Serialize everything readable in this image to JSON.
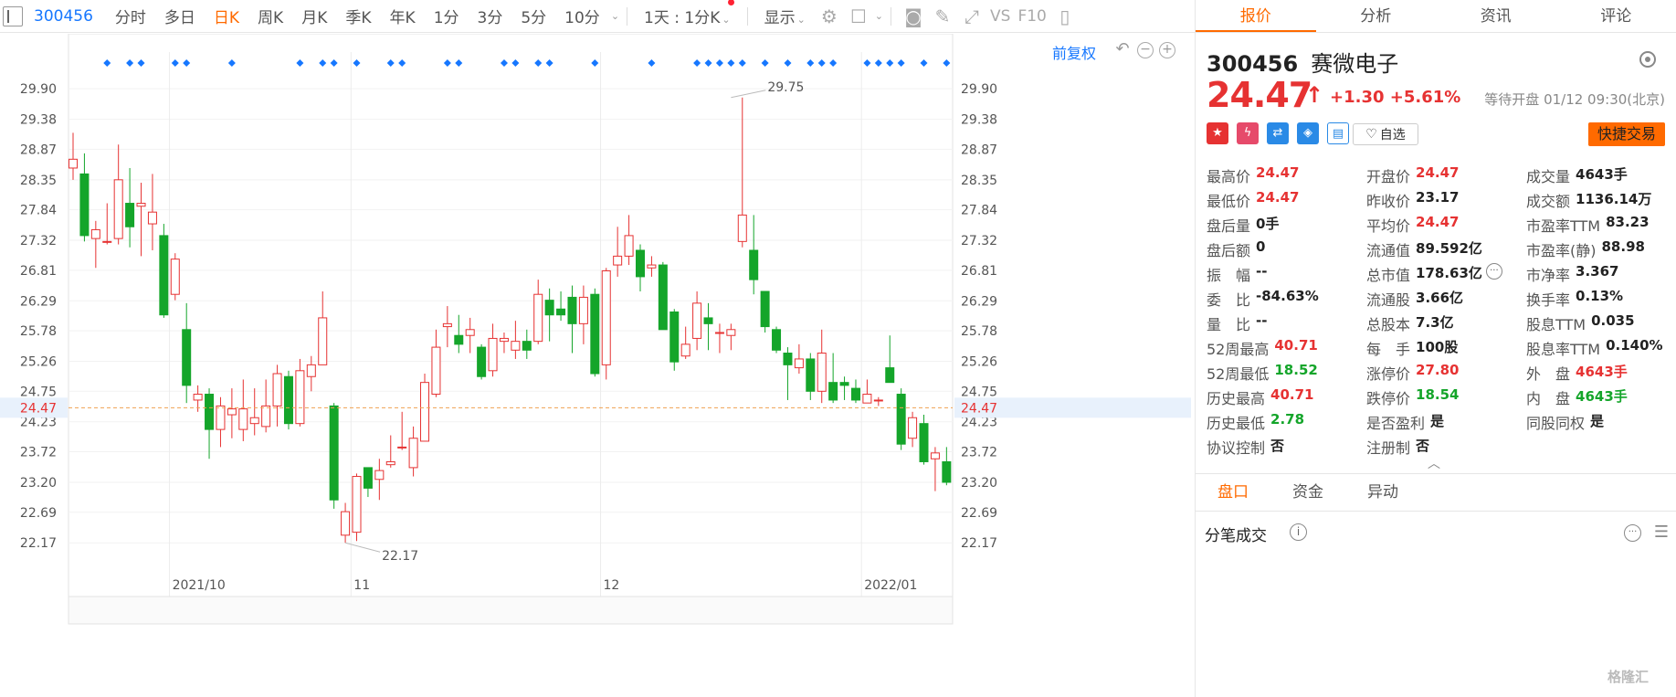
{
  "toolbar": {
    "code": "300456",
    "periods": [
      "分时",
      "多日",
      "日K",
      "周K",
      "月K",
      "季K",
      "年K",
      "1分",
      "3分",
      "5分",
      "10分"
    ],
    "active_period": "日K",
    "period_select": "1天 : 1分K",
    "display_label": "显示",
    "vs_label": "VS",
    "f10_label": "F10"
  },
  "chart_controls": {
    "restore_label": "前复权"
  },
  "panel": {
    "tabs": [
      "报价",
      "分析",
      "资讯",
      "评论"
    ],
    "active_tab": "报价",
    "code": "300456",
    "name": "赛微电子",
    "price": "24.47",
    "change": "+1.30",
    "change_pct": "+5.61%",
    "market_status": "等待开盘 01/12 09:30(北京)",
    "fav_label": "自选",
    "quick_trade_label": "快捷交易",
    "stats": [
      [
        {
          "k": "最高价",
          "v": "24.47",
          "c": "red"
        },
        {
          "k": "开盘价",
          "v": "24.47",
          "c": "red"
        },
        {
          "k": "成交量",
          "v": "4643手",
          "c": ""
        }
      ],
      [
        {
          "k": "最低价",
          "v": "24.47",
          "c": "red"
        },
        {
          "k": "昨收价",
          "v": "23.17",
          "c": ""
        },
        {
          "k": "成交额",
          "v": "1136.14万",
          "c": ""
        }
      ],
      [
        {
          "k": "盘后量",
          "v": "0手",
          "c": ""
        },
        {
          "k": "平均价",
          "v": "24.47",
          "c": "red"
        },
        {
          "k": "市盈率TTM",
          "v": "83.23",
          "c": ""
        }
      ],
      [
        {
          "k": "盘后额",
          "v": "0",
          "c": ""
        },
        {
          "k": "流通值",
          "v": "89.592亿",
          "c": ""
        },
        {
          "k": "市盈率(静)",
          "v": "88.98",
          "c": ""
        }
      ],
      [
        {
          "k": "振　幅",
          "v": "--",
          "c": ""
        },
        {
          "k": "总市值",
          "v": "178.63亿",
          "c": ""
        },
        {
          "k": "市净率",
          "v": "3.367",
          "c": ""
        }
      ],
      [
        {
          "k": "委　比",
          "v": "-84.63%",
          "c": ""
        },
        {
          "k": "流通股",
          "v": "3.66亿",
          "c": ""
        },
        {
          "k": "换手率",
          "v": "0.13%",
          "c": ""
        }
      ],
      [
        {
          "k": "量　比",
          "v": "--",
          "c": ""
        },
        {
          "k": "总股本",
          "v": "7.3亿",
          "c": ""
        },
        {
          "k": "股息TTM",
          "v": "0.035",
          "c": ""
        }
      ],
      [
        {
          "k": "52周最高",
          "v": "40.71",
          "c": "red"
        },
        {
          "k": "每　手",
          "v": "100股",
          "c": ""
        },
        {
          "k": "股息率TTM",
          "v": "0.140%",
          "c": ""
        }
      ],
      [
        {
          "k": "52周最低",
          "v": "18.52",
          "c": "green"
        },
        {
          "k": "涨停价",
          "v": "27.80",
          "c": "red"
        },
        {
          "k": "外　盘",
          "v": "4643手",
          "c": "red"
        }
      ],
      [
        {
          "k": "历史最高",
          "v": "40.71",
          "c": "red"
        },
        {
          "k": "跌停价",
          "v": "18.54",
          "c": "green"
        },
        {
          "k": "内　盘",
          "v": "4643手",
          "c": "green"
        }
      ],
      [
        {
          "k": "历史最低",
          "v": "2.78",
          "c": "green"
        },
        {
          "k": "是否盈利",
          "v": "是",
          "c": ""
        },
        {
          "k": "同股同权",
          "v": "是",
          "c": ""
        }
      ],
      [
        {
          "k": "协议控制",
          "v": "否",
          "c": ""
        },
        {
          "k": "注册制",
          "v": "否",
          "c": ""
        },
        {
          "k": "",
          "v": "",
          "c": ""
        }
      ]
    ],
    "sub_tabs": [
      "盘口",
      "资金",
      "异动"
    ],
    "active_sub_tab": "盘口",
    "tick_title": "分笔成交",
    "watermark": "格隆汇"
  },
  "colors": {
    "up": "#e63232",
    "down": "#14a52a",
    "accent": "#ff6a00",
    "link": "#1677ff",
    "price_line": "#f0a050"
  },
  "chart_data": {
    "type": "candlestick",
    "y_ticks": [
      "29.90",
      "29.38",
      "28.87",
      "28.35",
      "27.84",
      "27.32",
      "26.81",
      "26.29",
      "25.78",
      "25.26",
      "24.75",
      "24.23",
      "23.72",
      "23.20",
      "22.69",
      "22.17"
    ],
    "ylim": [
      21.8,
      30.4
    ],
    "x_labels": [
      {
        "label": "2021/10",
        "index": 9
      },
      {
        "label": "11",
        "index": 25
      },
      {
        "label": "12",
        "index": 47
      },
      {
        "label": "2022/01",
        "index": 70
      }
    ],
    "last_price": 24.47,
    "last_price_label": "24.47",
    "annotations": [
      {
        "label": "29.75",
        "index": 58,
        "value": 29.75
      },
      {
        "label": "22.17",
        "index": 24,
        "value": 22.17
      }
    ],
    "diamond_markers": [
      3,
      5,
      6,
      9,
      10,
      14,
      20,
      22,
      23,
      25,
      28,
      29,
      33,
      34,
      38,
      39,
      41,
      42,
      46,
      51,
      55,
      56,
      57,
      58,
      59,
      61,
      63,
      65,
      66,
      67,
      70,
      71,
      72,
      73,
      75,
      77
    ],
    "candles": [
      [
        28.55,
        28.7,
        29.15,
        28.35
      ],
      [
        28.45,
        27.4,
        28.8,
        27.3
      ],
      [
        27.35,
        27.5,
        27.65,
        26.85
      ],
      [
        27.3,
        27.3,
        27.95,
        27.25
      ],
      [
        27.35,
        28.35,
        28.95,
        27.25
      ],
      [
        27.95,
        27.55,
        28.55,
        27.2
      ],
      [
        27.9,
        27.95,
        28.3,
        27.05
      ],
      [
        27.6,
        27.8,
        28.45,
        27.15
      ],
      [
        27.4,
        26.05,
        27.6,
        26.0
      ],
      [
        26.4,
        27.0,
        27.1,
        26.3
      ],
      [
        25.8,
        24.85,
        26.25,
        24.55
      ],
      [
        24.6,
        24.7,
        24.85,
        24.4
      ],
      [
        24.7,
        24.1,
        24.8,
        23.6
      ],
      [
        24.1,
        24.5,
        24.65,
        23.8
      ],
      [
        24.35,
        24.45,
        24.8,
        23.95
      ],
      [
        24.1,
        24.45,
        24.95,
        23.9
      ],
      [
        24.2,
        24.3,
        24.8,
        24.0
      ],
      [
        24.15,
        24.5,
        24.95,
        24.05
      ],
      [
        24.5,
        25.05,
        25.2,
        24.15
      ],
      [
        25.0,
        24.2,
        25.1,
        24.1
      ],
      [
        24.2,
        25.1,
        25.3,
        24.15
      ],
      [
        25.0,
        25.2,
        25.35,
        24.75
      ],
      [
        25.2,
        26.0,
        26.45,
        25.2
      ],
      [
        24.5,
        22.9,
        24.55,
        22.75
      ],
      [
        22.3,
        22.7,
        22.85,
        22.17
      ],
      [
        22.35,
        23.3,
        23.35,
        22.2
      ],
      [
        23.45,
        23.1,
        23.45,
        22.95
      ],
      [
        23.25,
        23.4,
        23.6,
        22.9
      ],
      [
        23.5,
        23.55,
        24.0,
        23.45
      ],
      [
        23.8,
        23.8,
        24.4,
        23.75
      ],
      [
        23.45,
        23.95,
        24.15,
        23.3
      ],
      [
        23.9,
        24.9,
        25.05,
        23.9
      ],
      [
        24.7,
        25.5,
        25.8,
        24.65
      ],
      [
        25.85,
        25.9,
        26.2,
        25.5
      ],
      [
        25.7,
        25.55,
        26.05,
        25.4
      ],
      [
        25.7,
        25.8,
        26.0,
        25.4
      ],
      [
        25.5,
        25.0,
        25.55,
        24.95
      ],
      [
        25.1,
        25.65,
        25.9,
        25.0
      ],
      [
        25.6,
        25.65,
        25.75,
        25.4
      ],
      [
        25.45,
        25.6,
        25.95,
        25.3
      ],
      [
        25.6,
        25.45,
        25.8,
        25.3
      ],
      [
        25.6,
        26.4,
        26.65,
        25.55
      ],
      [
        26.3,
        26.05,
        26.5,
        25.6
      ],
      [
        26.15,
        26.05,
        26.45,
        25.95
      ],
      [
        26.35,
        25.9,
        26.55,
        25.4
      ],
      [
        25.9,
        26.35,
        26.55,
        25.55
      ],
      [
        26.4,
        25.05,
        26.5,
        25.0
      ],
      [
        25.2,
        26.8,
        26.85,
        24.95
      ],
      [
        26.9,
        27.05,
        27.55,
        26.7
      ],
      [
        27.05,
        27.4,
        27.75,
        26.9
      ],
      [
        27.15,
        26.7,
        27.25,
        26.45
      ],
      [
        26.85,
        26.9,
        27.05,
        26.7
      ],
      [
        26.9,
        25.8,
        26.95,
        25.8
      ],
      [
        26.1,
        25.25,
        26.15,
        25.1
      ],
      [
        25.35,
        25.55,
        25.85,
        25.3
      ],
      [
        25.65,
        26.25,
        26.45,
        25.45
      ],
      [
        26.0,
        25.9,
        26.25,
        25.45
      ],
      [
        25.75,
        25.75,
        25.9,
        25.4
      ],
      [
        25.7,
        25.8,
        25.9,
        25.45
      ],
      [
        27.3,
        27.75,
        29.75,
        27.2
      ],
      [
        27.15,
        26.65,
        27.75,
        26.4
      ],
      [
        26.45,
        25.85,
        26.45,
        25.75
      ],
      [
        25.8,
        25.45,
        25.85,
        25.4
      ],
      [
        25.4,
        25.2,
        25.5,
        24.6
      ],
      [
        25.15,
        25.3,
        25.55,
        25.05
      ],
      [
        25.3,
        24.75,
        25.4,
        24.6
      ],
      [
        24.75,
        25.4,
        25.8,
        24.55
      ],
      [
        24.9,
        24.6,
        25.4,
        24.55
      ],
      [
        24.9,
        24.85,
        25.0,
        24.6
      ],
      [
        24.8,
        24.6,
        24.95,
        24.55
      ],
      [
        24.55,
        24.7,
        24.95,
        24.55
      ],
      [
        24.6,
        24.6,
        24.65,
        24.5
      ],
      [
        25.15,
        24.9,
        25.7,
        24.9
      ],
      [
        24.7,
        23.85,
        24.8,
        23.75
      ],
      [
        23.95,
        24.3,
        24.4,
        23.8
      ],
      [
        24.2,
        23.55,
        24.35,
        23.5
      ],
      [
        23.6,
        23.7,
        23.8,
        23.05
      ],
      [
        23.55,
        23.2,
        23.8,
        23.15
      ]
    ]
  }
}
